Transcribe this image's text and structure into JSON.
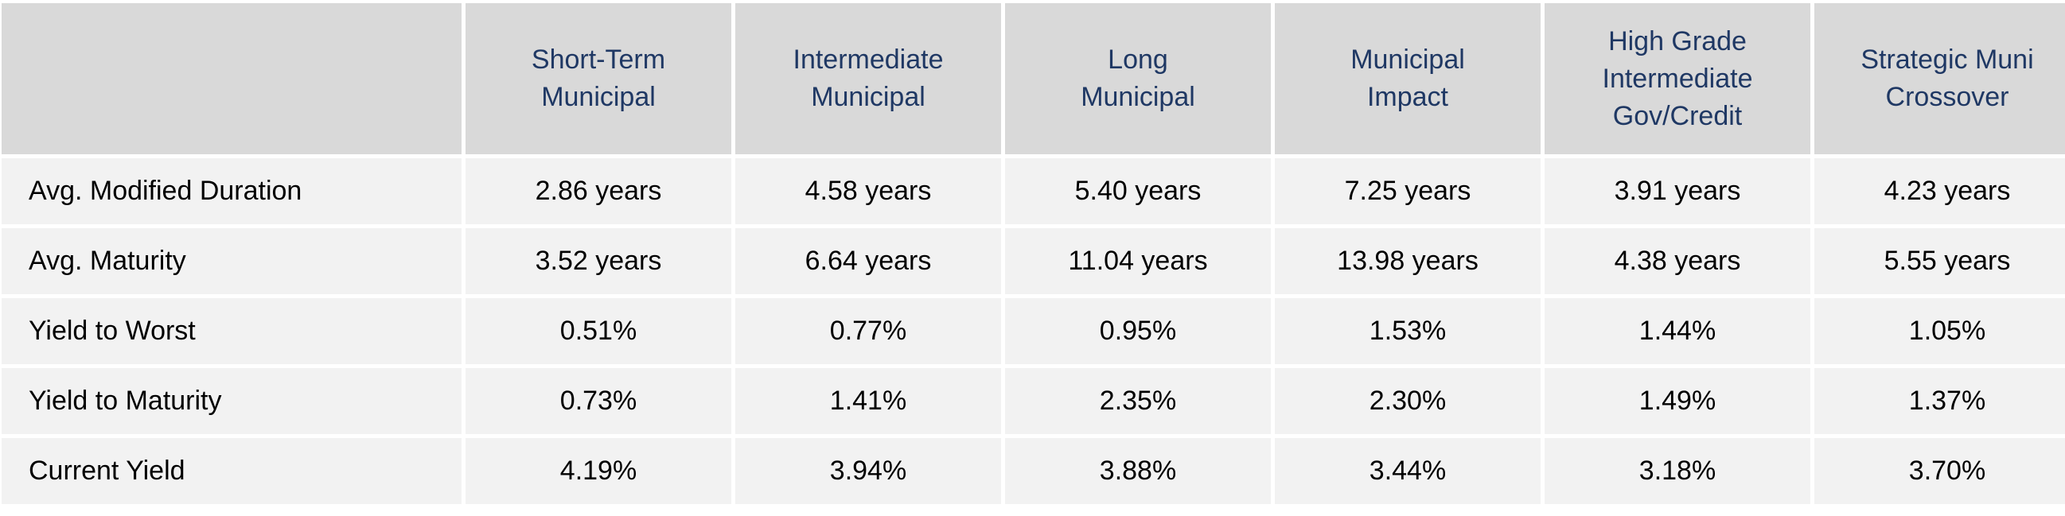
{
  "table": {
    "columns": [
      {
        "line1": "Short-Term",
        "line2": "Municipal",
        "line3": ""
      },
      {
        "line1": "Intermediate",
        "line2": "Municipal",
        "line3": ""
      },
      {
        "line1": "Long",
        "line2": "Municipal",
        "line3": ""
      },
      {
        "line1": "Municipal",
        "line2": "Impact",
        "line3": ""
      },
      {
        "line1": "High Grade",
        "line2": "Intermediate",
        "line3": "Gov/Credit"
      },
      {
        "line1": "Strategic Muni",
        "line2": "Crossover",
        "line3": ""
      }
    ],
    "rows": [
      {
        "label": "Avg. Modified Duration",
        "values": [
          "2.86 years",
          "4.58 years",
          "5.40 years",
          "7.25 years",
          "3.91 years",
          "4.23 years"
        ]
      },
      {
        "label": "Avg. Maturity",
        "values": [
          "3.52 years",
          "6.64 years",
          "11.04 years",
          "13.98 years",
          "4.38 years",
          "5.55 years"
        ]
      },
      {
        "label": "Yield to Worst",
        "values": [
          "0.51%",
          "0.77%",
          "0.95%",
          "1.53%",
          "1.44%",
          "1.05%"
        ]
      },
      {
        "label": "Yield to Maturity",
        "values": [
          "0.73%",
          "1.41%",
          "2.35%",
          "2.30%",
          "1.49%",
          "1.37%"
        ]
      },
      {
        "label": "Current Yield",
        "values": [
          "4.19%",
          "3.94%",
          "3.88%",
          "3.44%",
          "3.18%",
          "3.70%"
        ]
      }
    ]
  }
}
